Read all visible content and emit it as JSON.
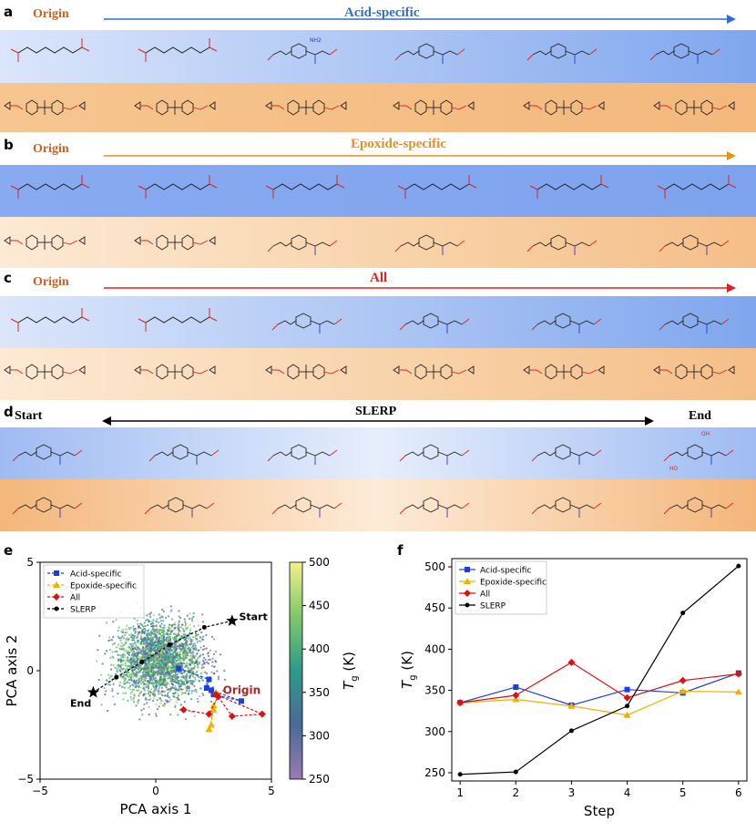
{
  "panels": {
    "a": {
      "letter": "a",
      "origin": "Origin",
      "title": "Acid-specific",
      "arrow_color": "#2f6fd0"
    },
    "b": {
      "letter": "b",
      "origin": "Origin",
      "title": "Epoxide-specific",
      "arrow_color": "#e8901c"
    },
    "c": {
      "letter": "c",
      "origin": "Origin",
      "title": "All",
      "arrow_color": "#e02020"
    },
    "d": {
      "letter": "d",
      "start": "Start",
      "title": "SLERP",
      "end": "End"
    }
  },
  "mol_labels": {
    "nh2": "NH2",
    "oh": "OH",
    "ho": "HO"
  },
  "panel_e": {
    "letter": "e",
    "xlabel": "PCA axis 1",
    "ylabel": "PCA axis 2",
    "xticks": [
      "−5",
      "0",
      "5"
    ],
    "yticks": [
      "5",
      "0",
      "−5"
    ],
    "colorbar_label": "T",
    "colorbar_sub": "g",
    "colorbar_unit": "(K)",
    "colorbar_ticks": [
      "500",
      "450",
      "400",
      "350",
      "300",
      "250"
    ],
    "annotations": {
      "start": "Start",
      "end": "End",
      "origin": "Origin"
    },
    "legend": [
      {
        "label": "Acid-specific",
        "color": "#1a3fe0",
        "marker": "square"
      },
      {
        "label": "Epoxide-specific",
        "color": "#f4b000",
        "marker": "triangle"
      },
      {
        "label": "All",
        "color": "#e01010",
        "marker": "diamond"
      },
      {
        "label": "SLERP",
        "color": "#000000",
        "marker": "circle"
      }
    ]
  },
  "chart_data": [
    {
      "type": "scatter",
      "title": "",
      "xlabel": "PCA axis 1",
      "ylabel": "PCA axis 2",
      "xlim": [
        -5,
        5
      ],
      "ylim": [
        -5,
        5
      ],
      "series": [
        {
          "name": "Acid-specific",
          "x": [
            1.0,
            2.3,
            2.2,
            2.5,
            3.7,
            2.4
          ],
          "y": [
            0.1,
            -0.4,
            -0.8,
            -1.1,
            -1.4,
            -0.9
          ]
        },
        {
          "name": "Epoxide-specific",
          "x": [
            2.6,
            2.7,
            2.5,
            2.4,
            2.3,
            2.5
          ],
          "y": [
            -1.0,
            -1.1,
            -1.6,
            -2.5,
            -2.7,
            -1.8
          ]
        },
        {
          "name": "All",
          "x": [
            1.2,
            2.3,
            2.7,
            3.3,
            4.6,
            2.6
          ],
          "y": [
            -1.8,
            -2.0,
            -1.2,
            -2.1,
            -2.0,
            -1.1
          ]
        },
        {
          "name": "SLERP",
          "x": [
            3.3,
            2.1,
            0.6,
            -0.6,
            -1.7,
            -2.7
          ],
          "y": [
            2.3,
            2.0,
            1.2,
            0.4,
            -0.3,
            -1.0
          ]
        }
      ],
      "colorbar": {
        "label": "Tg (K)",
        "range": [
          250,
          500
        ]
      }
    },
    {
      "type": "line",
      "title": "",
      "xlabel": "Step",
      "ylabel": "Tg (K)",
      "x": [
        1,
        2,
        3,
        4,
        5,
        6
      ],
      "xlim": [
        0.85,
        6.15
      ],
      "ylim": [
        240,
        510
      ],
      "yticks": [
        250,
        300,
        350,
        400,
        450,
        500
      ],
      "series": [
        {
          "name": "Acid-specific",
          "color": "#1a3fe0",
          "marker": "square",
          "values": [
            335,
            354,
            332,
            351,
            347,
            371
          ]
        },
        {
          "name": "Epoxide-specific",
          "color": "#f4b000",
          "marker": "triangle",
          "values": [
            335,
            339,
            331,
            320,
            349,
            348
          ]
        },
        {
          "name": "All",
          "color": "#e01010",
          "marker": "diamond",
          "values": [
            335,
            344,
            384,
            341,
            362,
            370
          ]
        },
        {
          "name": "SLERP",
          "color": "#000000",
          "marker": "circle",
          "values": [
            248,
            251,
            301,
            331,
            444,
            501
          ]
        }
      ]
    }
  ],
  "panel_f": {
    "letter": "f",
    "xlabel": "Step",
    "ylabel": "T",
    "ylabel_sub": "g",
    "ylabel_unit": "(K)",
    "xticks": [
      "1",
      "2",
      "3",
      "4",
      "5",
      "6"
    ],
    "yticks": [
      "250",
      "300",
      "350",
      "400",
      "450",
      "500"
    ]
  }
}
